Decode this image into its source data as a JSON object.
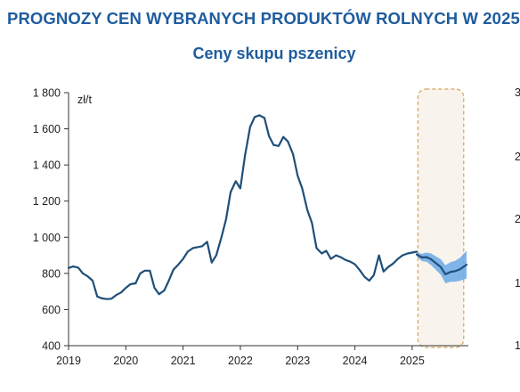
{
  "page": {
    "title": "PROGNOZY CEN WYBRANYCH PRODUKTÓW ROLNYCH W 2025"
  },
  "chart_data": {
    "type": "line",
    "title": "Ceny skupu pszenicy",
    "unit_label": "zł/t",
    "xlabel": "",
    "ylabel": "",
    "xlim": [
      2019.0,
      2025.95
    ],
    "ylim": [
      400,
      1800
    ],
    "y_ticks": [
      "400",
      "600",
      "800",
      "1 000",
      "1 200",
      "1 400",
      "1 600",
      "1 800"
    ],
    "y_tick_values": [
      400,
      600,
      800,
      1000,
      1200,
      1400,
      1600,
      1800
    ],
    "x_ticks": [
      "2019",
      "2020",
      "2021",
      "2022",
      "2023",
      "2024",
      "2025"
    ],
    "x_tick_values": [
      2019,
      2020,
      2021,
      2022,
      2023,
      2024,
      2025
    ],
    "grid": false,
    "legend": "none",
    "colors": {
      "line": "#1f4e79",
      "band": "#6aa8e8",
      "forecast_box_fill": "#f8f3ec",
      "forecast_box_border": "#d4a35c",
      "title": "#1f5c9e"
    },
    "series": [
      {
        "points": [
          [
            2019.0,
            830
          ],
          [
            2019.08,
            838
          ],
          [
            2019.17,
            832
          ],
          [
            2019.25,
            800
          ],
          [
            2019.33,
            785
          ],
          [
            2019.42,
            760
          ],
          [
            2019.5,
            672
          ],
          [
            2019.58,
            662
          ],
          [
            2019.67,
            658
          ],
          [
            2019.75,
            660
          ],
          [
            2019.83,
            680
          ],
          [
            2019.92,
            695
          ],
          [
            2020.0,
            720
          ],
          [
            2020.08,
            740
          ],
          [
            2020.17,
            745
          ],
          [
            2020.25,
            800
          ],
          [
            2020.33,
            815
          ],
          [
            2020.42,
            815
          ],
          [
            2020.5,
            720
          ],
          [
            2020.58,
            685
          ],
          [
            2020.67,
            705
          ],
          [
            2020.75,
            760
          ],
          [
            2020.83,
            820
          ],
          [
            2020.92,
            850
          ],
          [
            2021.0,
            880
          ],
          [
            2021.08,
            920
          ],
          [
            2021.17,
            940
          ],
          [
            2021.25,
            945
          ],
          [
            2021.33,
            950
          ],
          [
            2021.42,
            975
          ],
          [
            2021.5,
            860
          ],
          [
            2021.58,
            900
          ],
          [
            2021.67,
            1000
          ],
          [
            2021.75,
            1100
          ],
          [
            2021.83,
            1250
          ],
          [
            2021.92,
            1310
          ],
          [
            2022.0,
            1270
          ],
          [
            2022.08,
            1450
          ],
          [
            2022.17,
            1610
          ],
          [
            2022.25,
            1665
          ],
          [
            2022.33,
            1675
          ],
          [
            2022.42,
            1660
          ],
          [
            2022.5,
            1560
          ],
          [
            2022.58,
            1510
          ],
          [
            2022.67,
            1505
          ],
          [
            2022.75,
            1555
          ],
          [
            2022.83,
            1530
          ],
          [
            2022.92,
            1460
          ],
          [
            2023.0,
            1340
          ],
          [
            2023.08,
            1270
          ],
          [
            2023.17,
            1150
          ],
          [
            2023.25,
            1080
          ],
          [
            2023.33,
            940
          ],
          [
            2023.42,
            910
          ],
          [
            2023.5,
            925
          ],
          [
            2023.58,
            880
          ],
          [
            2023.67,
            900
          ],
          [
            2023.75,
            890
          ],
          [
            2023.83,
            875
          ],
          [
            2023.92,
            865
          ],
          [
            2024.0,
            850
          ],
          [
            2024.08,
            820
          ],
          [
            2024.17,
            780
          ],
          [
            2024.25,
            760
          ],
          [
            2024.33,
            790
          ],
          [
            2024.42,
            900
          ],
          [
            2024.5,
            810
          ],
          [
            2024.58,
            835
          ],
          [
            2024.67,
            855
          ],
          [
            2024.75,
            880
          ],
          [
            2024.83,
            900
          ],
          [
            2024.92,
            910
          ],
          [
            2025.0,
            915
          ],
          [
            2025.08,
            920
          ]
        ]
      },
      {
        "points": [
          [
            2025.08,
            905
          ],
          [
            2025.17,
            888
          ],
          [
            2025.25,
            890
          ],
          [
            2025.33,
            878
          ],
          [
            2025.42,
            855
          ],
          [
            2025.5,
            835
          ],
          [
            2025.58,
            795
          ],
          [
            2025.67,
            808
          ],
          [
            2025.75,
            812
          ],
          [
            2025.83,
            822
          ],
          [
            2025.95,
            848
          ]
        ]
      }
    ],
    "band": {
      "upper": [
        [
          2025.08,
          915
        ],
        [
          2025.17,
          908
        ],
        [
          2025.25,
          915
        ],
        [
          2025.33,
          910
        ],
        [
          2025.42,
          893
        ],
        [
          2025.5,
          878
        ],
        [
          2025.58,
          845
        ],
        [
          2025.67,
          862
        ],
        [
          2025.75,
          870
        ],
        [
          2025.83,
          885
        ],
        [
          2025.95,
          925
        ]
      ],
      "lower": [
        [
          2025.08,
          895
        ],
        [
          2025.17,
          868
        ],
        [
          2025.25,
          865
        ],
        [
          2025.33,
          846
        ],
        [
          2025.42,
          817
        ],
        [
          2025.5,
          792
        ],
        [
          2025.58,
          745
        ],
        [
          2025.67,
          754
        ],
        [
          2025.75,
          754
        ],
        [
          2025.83,
          759
        ],
        [
          2025.95,
          771
        ]
      ]
    },
    "forecast_box": {
      "x_from": 2025.1,
      "x_to": 2025.9
    }
  },
  "cut_off_right_axis": {
    "labels": [
      "3",
      "2",
      "2",
      "1",
      "1"
    ]
  }
}
